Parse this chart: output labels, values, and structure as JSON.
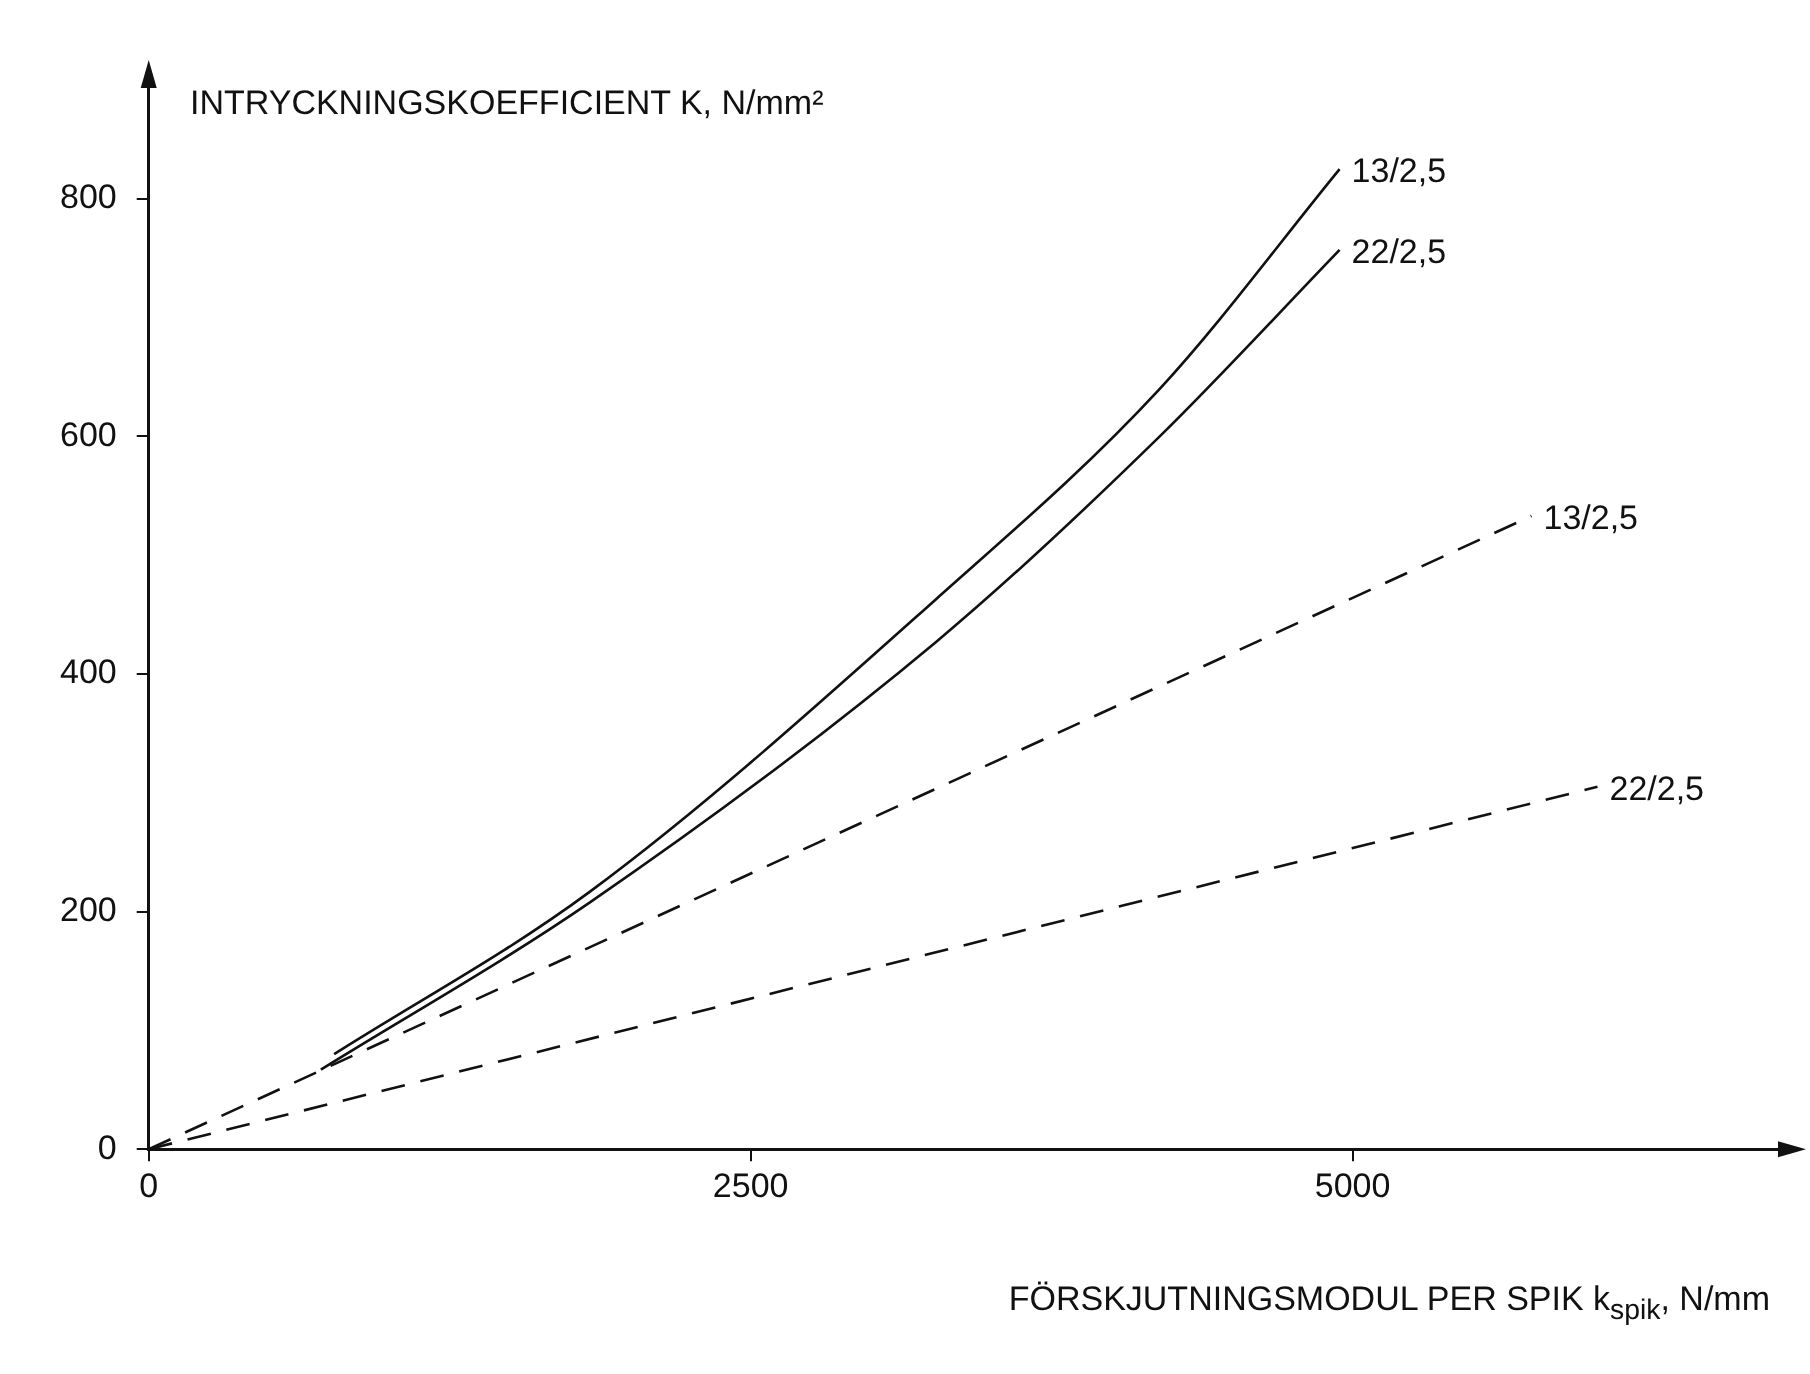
{
  "chart_data": {
    "type": "line",
    "xlabel": "FÖRSKJUTNINGSMODUL PER SPIK k$_{spik}$, N/mm",
    "ylabel": "INTRYCKNINGSKOEFFICIENT K, N/mm²",
    "xlim": [
      0,
      6800
    ],
    "ylim": [
      0,
      900
    ],
    "xticks": [
      0,
      2500,
      5000
    ],
    "yticks": [
      0,
      200,
      400,
      600,
      800
    ],
    "grid": false,
    "legend": false,
    "marker": "none",
    "series": [
      {
        "name": "13/2,5",
        "color": "#111111",
        "line_style": "solid",
        "x": [
          770,
          1834,
          3270,
          4199,
          4946
        ],
        "values": [
          80,
          217,
          463,
          640,
          825
        ]
      },
      {
        "name": "22/2,5",
        "color": "#111111",
        "line_style": "solid",
        "x": [
          715,
          1834,
          3270,
          4199,
          4946
        ],
        "values": [
          67,
          208,
          427,
          600,
          757
        ]
      },
      {
        "name": "13/2,5",
        "color": "#111111",
        "line_style": "dashed",
        "x": [
          0,
          5743
        ],
        "values": [
          0,
          533
        ]
      },
      {
        "name": "22/2,5",
        "color": "#111111",
        "line_style": "dashed",
        "x": [
          0,
          6017
        ],
        "values": [
          0,
          305
        ]
      }
    ]
  }
}
